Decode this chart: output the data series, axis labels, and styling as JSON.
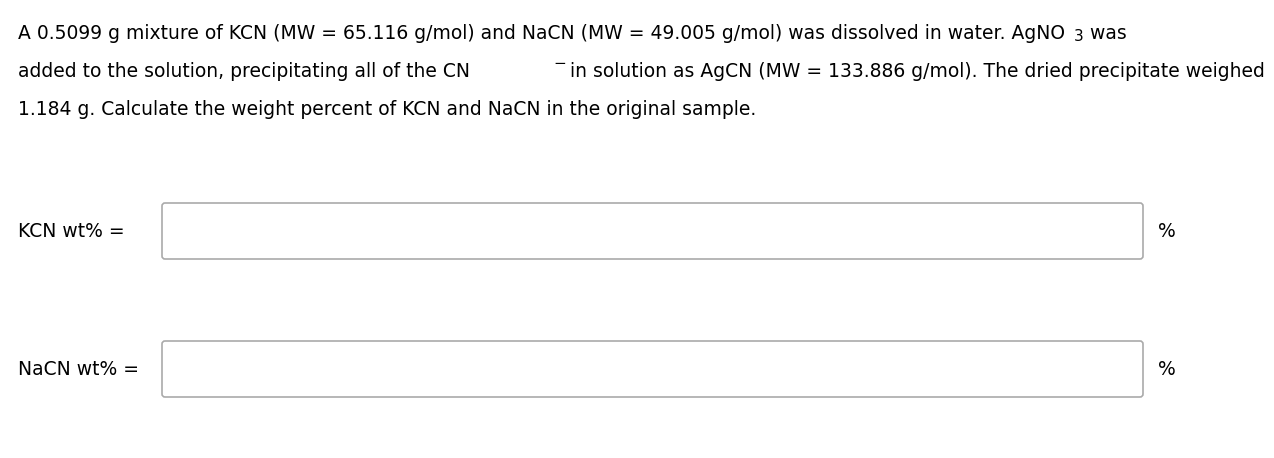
{
  "background_color": "#ffffff",
  "text_color": "#000000",
  "font_size": 13.5,
  "label_font_size": 13.5,
  "box_edge_color": "#aaaaaa",
  "box_face_color": "#ffffff",
  "line1_main": "A 0.5099 g mixture of KCN (MW = 65.116 g/mol) and NaCN (MW = 49.005 g/mol) was dissolved in water. AgNO",
  "line1_sub": "3",
  "line1_end": " was",
  "line2_main": "added to the solution, precipitating all of the CN",
  "line2_sup": "−",
  "line2_end": " in solution as AgCN (MW = 133.886 g/mol). The dried precipitate weighed",
  "line3": "1.184 g. Calculate the weight percent of KCN and NaCN in the original sample.",
  "label1": "KCN wt% =",
  "label2": "NaCN wt% =",
  "percent_sign": "%"
}
